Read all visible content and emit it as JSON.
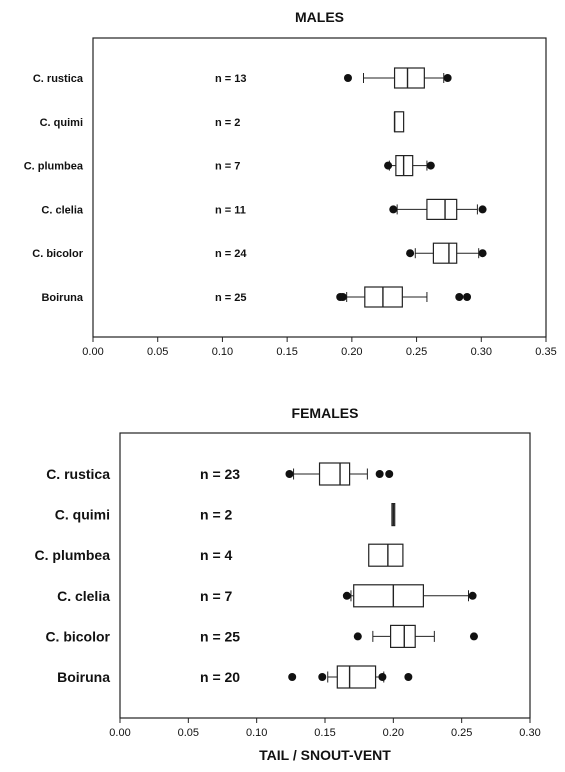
{
  "chart_data": [
    {
      "type": "box",
      "title": "MALES",
      "xlabel": "",
      "ylabel": "",
      "xlim": [
        0.0,
        0.35
      ],
      "xticks": [
        "0.00",
        "0.05",
        "0.10",
        "0.15",
        "0.20",
        "0.25",
        "0.30",
        "0.35"
      ],
      "grid": false,
      "categories": [
        "C. rustica",
        "C. quimi",
        "C. plumbea",
        "C. clelia",
        "C. bicolor",
        "Boiruna"
      ],
      "n_labels": [
        "n = 13",
        "n = 2",
        "n = 7",
        "n = 11",
        "n = 24",
        "n = 25"
      ],
      "boxes": [
        {
          "whisker_low": 0.209,
          "q1": 0.233,
          "median": 0.243,
          "q3": 0.256,
          "whisker_high": 0.271,
          "outliers": [
            0.197,
            0.274
          ]
        },
        {
          "whisker_low": null,
          "q1": 0.233,
          "median": 0.233,
          "q3": 0.24,
          "whisker_high": null,
          "outliers": []
        },
        {
          "whisker_low": 0.229,
          "q1": 0.234,
          "median": 0.24,
          "q3": 0.247,
          "whisker_high": 0.258,
          "outliers": [
            0.228,
            0.261
          ]
        },
        {
          "whisker_low": 0.235,
          "q1": 0.258,
          "median": 0.272,
          "q3": 0.281,
          "whisker_high": 0.297,
          "outliers": [
            0.232,
            0.301
          ]
        },
        {
          "whisker_low": 0.249,
          "q1": 0.263,
          "median": 0.275,
          "q3": 0.281,
          "whisker_high": 0.298,
          "outliers": [
            0.245,
            0.301
          ]
        },
        {
          "whisker_low": 0.196,
          "q1": 0.21,
          "median": 0.224,
          "q3": 0.239,
          "whisker_high": 0.258,
          "outliers": [
            0.191,
            0.193,
            0.283,
            0.289
          ]
        }
      ]
    },
    {
      "type": "box",
      "title": "FEMALES",
      "xlabel": "TAIL / SNOUT-VENT",
      "ylabel": "",
      "xlim": [
        0.0,
        0.3
      ],
      "xticks": [
        "0.00",
        "0.05",
        "0.10",
        "0.15",
        "0.20",
        "0.25",
        "0.30"
      ],
      "grid": false,
      "categories": [
        "C. rustica",
        "C. quimi",
        "C. plumbea",
        "C. clelia",
        "C. bicolor",
        "Boiruna"
      ],
      "n_labels": [
        "n = 23",
        "n = 2",
        "n = 4",
        "n = 7",
        "n = 25",
        "n = 20"
      ],
      "boxes": [
        {
          "whisker_low": 0.127,
          "q1": 0.146,
          "median": 0.161,
          "q3": 0.168,
          "whisker_high": 0.181,
          "outliers": [
            0.124,
            0.19,
            0.197
          ]
        },
        {
          "whisker_low": null,
          "q1": 0.199,
          "median": 0.2,
          "q3": 0.201,
          "whisker_high": null,
          "outliers": []
        },
        {
          "whisker_low": null,
          "q1": 0.182,
          "median": 0.196,
          "q3": 0.207,
          "whisker_high": null,
          "outliers": []
        },
        {
          "whisker_low": 0.169,
          "q1": 0.171,
          "median": 0.2,
          "q3": 0.222,
          "whisker_high": 0.255,
          "outliers": [
            0.166,
            0.258
          ]
        },
        {
          "whisker_low": 0.185,
          "q1": 0.198,
          "median": 0.208,
          "q3": 0.216,
          "whisker_high": 0.23,
          "outliers": [
            0.174,
            0.259
          ]
        },
        {
          "whisker_low": 0.152,
          "q1": 0.159,
          "median": 0.168,
          "q3": 0.187,
          "whisker_high": 0.193,
          "outliers": [
            0.126,
            0.148,
            0.192,
            0.211
          ]
        }
      ]
    }
  ]
}
